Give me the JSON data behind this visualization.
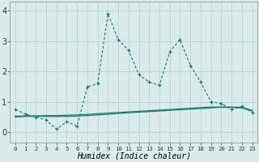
{
  "xlabel": "Humidex (Indice chaleur)",
  "x_values": [
    0,
    1,
    2,
    3,
    4,
    5,
    6,
    7,
    8,
    9,
    10,
    11,
    12,
    13,
    14,
    15,
    16,
    17,
    18,
    19,
    20,
    21,
    22,
    23
  ],
  "line1_y": [
    0.75,
    0.6,
    0.5,
    0.4,
    0.1,
    0.35,
    0.2,
    1.5,
    1.6,
    3.9,
    3.05,
    2.7,
    1.9,
    1.65,
    1.55,
    2.65,
    3.05,
    2.2,
    1.65,
    1.0,
    0.95,
    0.75,
    0.85,
    0.65
  ],
  "line2_y": [
    0.5,
    0.52,
    0.52,
    0.52,
    0.52,
    0.52,
    0.53,
    0.55,
    0.57,
    0.59,
    0.62,
    0.64,
    0.66,
    0.68,
    0.7,
    0.72,
    0.74,
    0.76,
    0.78,
    0.8,
    0.82,
    0.82,
    0.8,
    0.7
  ],
  "line3_y": [
    0.53,
    0.54,
    0.54,
    0.55,
    0.55,
    0.56,
    0.57,
    0.59,
    0.61,
    0.63,
    0.65,
    0.67,
    0.69,
    0.71,
    0.73,
    0.75,
    0.77,
    0.79,
    0.81,
    0.83,
    0.83,
    0.83,
    0.82,
    0.72
  ],
  "line_color": "#1a7a6a",
  "bg_color": "#daeaea",
  "grid_color": "#b0cccc",
  "ylim": [
    -0.35,
    4.3
  ],
  "yticks": [
    0,
    1,
    2,
    3,
    4
  ],
  "xlim": [
    -0.5,
    23.5
  ]
}
